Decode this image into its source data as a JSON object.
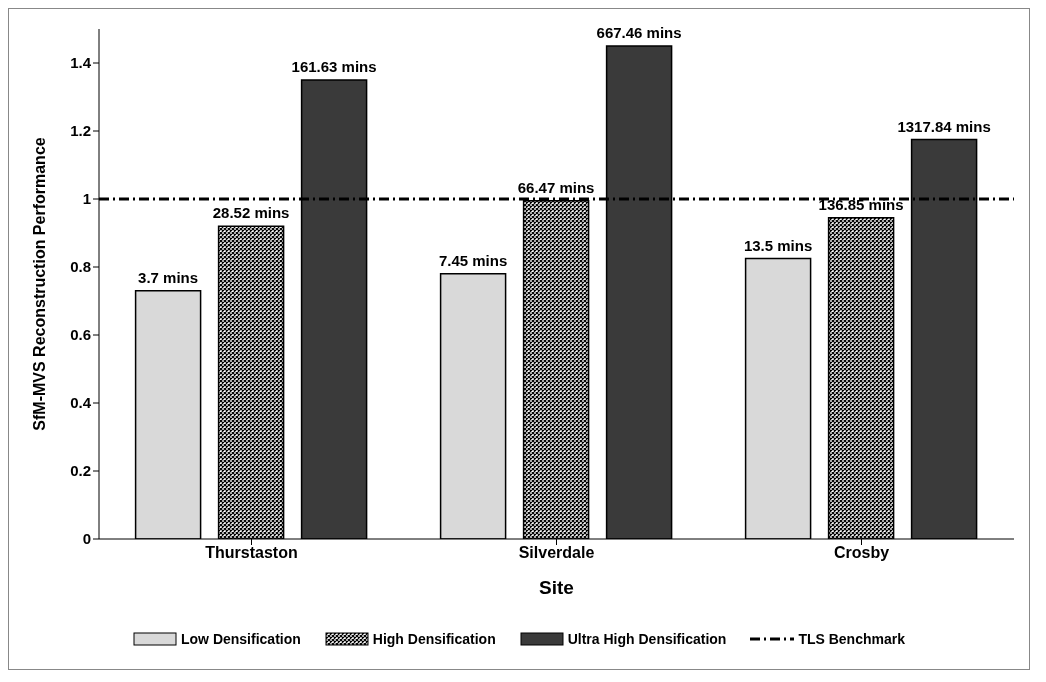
{
  "chart_data": {
    "type": "bar",
    "xlabel": "Site",
    "ylabel": "SfM-MVS  Reconstruction Performance",
    "categories": [
      "Thurstaston",
      "Silverdale",
      "Crosby"
    ],
    "series": [
      {
        "name": "Low Densification",
        "color": "#d9d9d9",
        "values": [
          0.73,
          0.78,
          0.825
        ]
      },
      {
        "name": "High Densification",
        "color": "#000000",
        "values": [
          0.92,
          0.995,
          0.945
        ]
      },
      {
        "name": "Ultra High Densification",
        "color": "#3a3a3a",
        "values": [
          1.35,
          1.45,
          1.175
        ]
      }
    ],
    "annotations": [
      "3.7 mins",
      "28.52 mins",
      "161.63 mins",
      "7.45 mins",
      "66.47 mins",
      "667.46 mins",
      "13.5 mins",
      "136.85 mins",
      "1317.84 mins"
    ],
    "ylim": [
      0,
      1.5
    ],
    "yticks": [
      0,
      0.2,
      0.4,
      0.6,
      0.8,
      1,
      1.2,
      1.4
    ],
    "ref_lines": [
      {
        "axis": "y",
        "value": 1,
        "label": "TLS Benchmark",
        "color": "#000000",
        "line_style": "dashdot"
      }
    ],
    "grid": false,
    "legend": "bottom"
  }
}
